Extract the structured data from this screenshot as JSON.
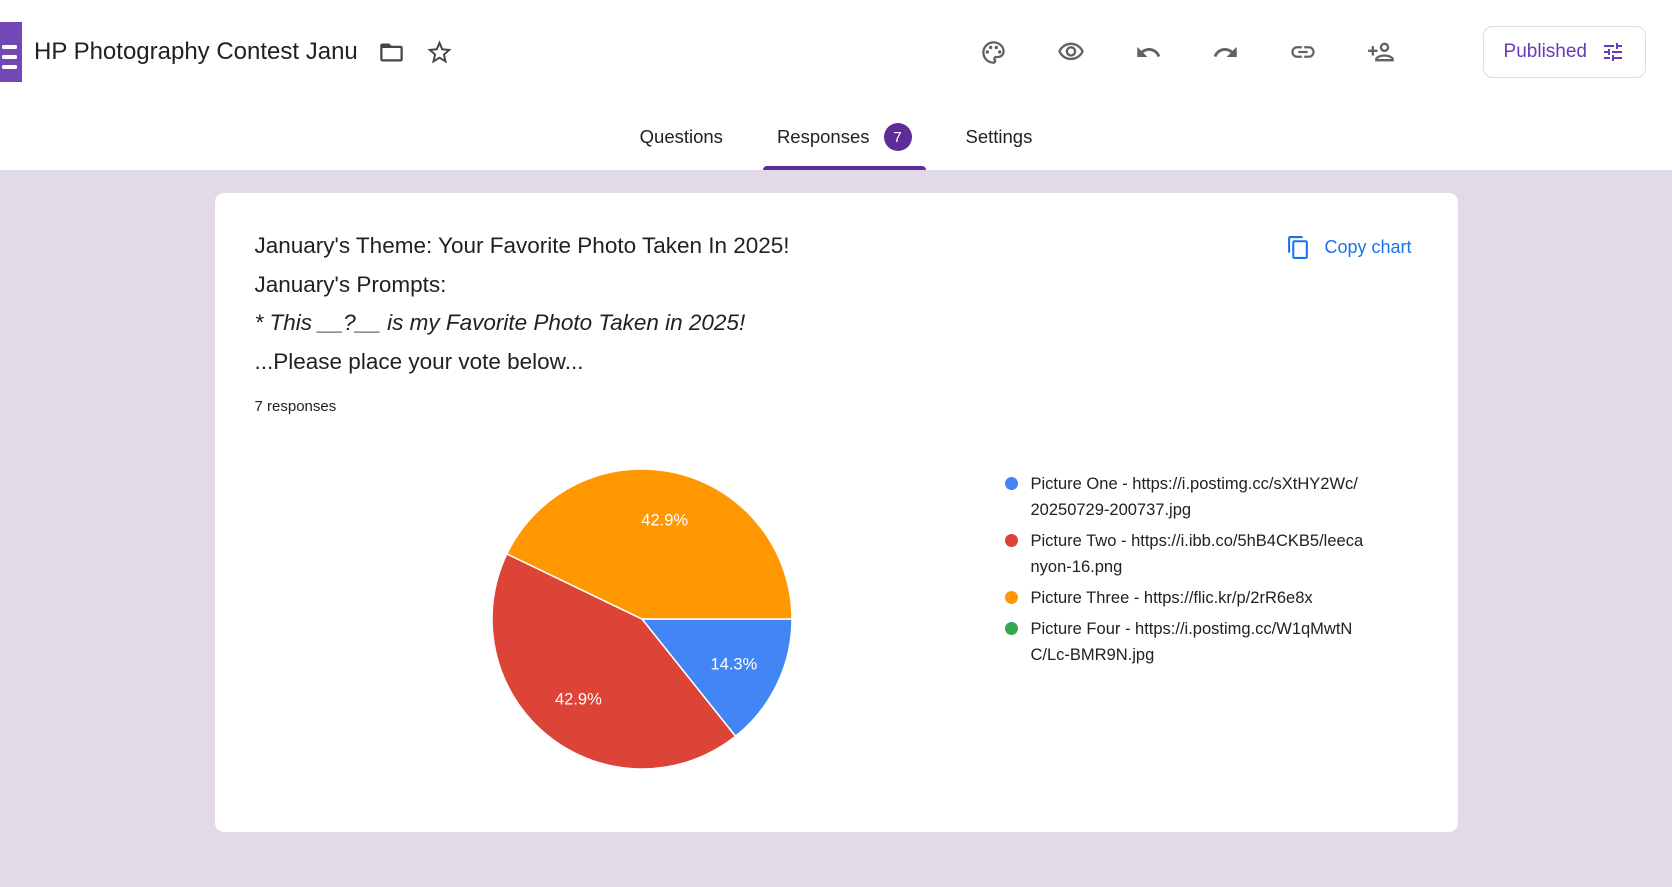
{
  "colors": {
    "page_bg": "#e2dae9",
    "text_dark": "#202124",
    "icon_gray": "#5f6368",
    "purple_accent": "#5e2b97",
    "purple_brand": "#673ab7",
    "link_blue": "#1a73e8",
    "border_gray": "#dadce0"
  },
  "header": {
    "title": "HP Photography Contest Janu",
    "published_label": "Published",
    "icons": {
      "logo": "forms-logo",
      "title_row": [
        "folder-icon",
        "star-icon"
      ],
      "toolbar": [
        "palette-icon",
        "preview-eye-icon",
        "undo-icon",
        "redo-icon",
        "link-icon",
        "person-add-icon"
      ],
      "published": "tune-icon"
    }
  },
  "tabs": [
    {
      "label": "Questions",
      "active": false
    },
    {
      "label": "Responses",
      "active": true,
      "badge": "7"
    },
    {
      "label": "Settings",
      "active": false
    }
  ],
  "card": {
    "question_lines": {
      "line1": "January's Theme: Your Favorite Photo Taken In 2025!",
      "line2": "January's Prompts:",
      "line3": "* This __?__ is my Favorite Photo Taken in 2025!",
      "line4": "...Please place your vote below..."
    },
    "responses_count_label": "7 responses",
    "copy_chart_label": "Copy chart",
    "copy_chart_icon": "copy-icon"
  },
  "chart_data": {
    "type": "pie",
    "title": "January's Theme: Your Favorite Photo Taken In 2025! January's Prompts: * This __?__ is my Favorite Photo Taken in 2025! ...Please place your vote below...",
    "total_responses": 7,
    "start_angle_deg_from_top": 90,
    "direction": "clockwise",
    "legend_position": "right",
    "slices": [
      {
        "label": "Picture One - https://i.postimg.cc/sXtHY2Wc/20250729-200737.jpg",
        "color": "#4285f4",
        "value": 1,
        "percent": "14.3%"
      },
      {
        "label": "Picture Two - https://i.ibb.co/5hB4CKB5/leecanyon-16.png",
        "color": "#db4437",
        "value": 3,
        "percent": "42.9%"
      },
      {
        "label": "Picture Three - https://flic.kr/p/2rR6e8x",
        "color": "#ff9800",
        "value": 3,
        "percent": "42.9%"
      },
      {
        "label": "Picture Four - https://i.postimg.cc/W1qMwtNC/Lc-BMR9N.jpg",
        "color": "#34a853",
        "value": 0,
        "percent": "0%"
      }
    ]
  }
}
